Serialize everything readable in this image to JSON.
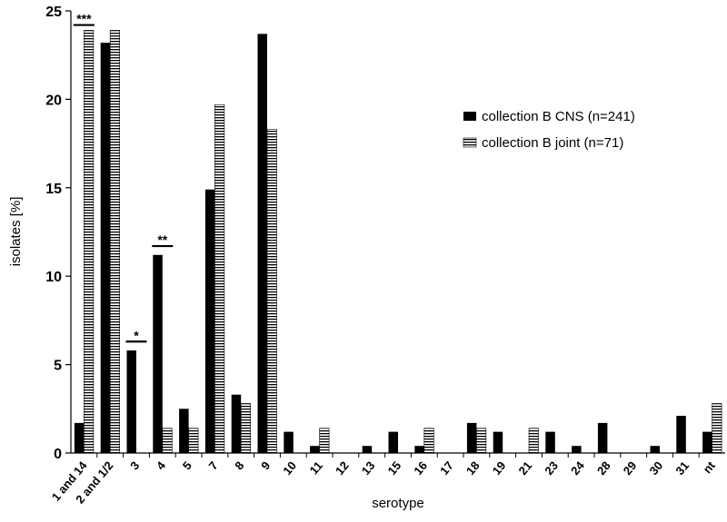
{
  "chart_data": {
    "type": "bar",
    "title": "",
    "xlabel": "serotype",
    "ylabel": "isolates [%]",
    "ylim": [
      0,
      25
    ],
    "yticks": [
      0,
      5,
      10,
      15,
      20,
      25
    ],
    "grid": false,
    "legend_position": "right",
    "categories": [
      "1 and 14",
      "2 and 1/2",
      "3",
      "4",
      "5",
      "7",
      "8",
      "9",
      "10",
      "11",
      "12",
      "13",
      "15",
      "16",
      "17",
      "18",
      "19",
      "21",
      "23",
      "24",
      "28",
      "29",
      "30",
      "31",
      "nt"
    ],
    "series": [
      {
        "name": "collection B CNS (n=241)",
        "fill": "#000000",
        "pattern": "solid",
        "values": [
          1.7,
          23.2,
          5.8,
          11.2,
          2.5,
          14.9,
          3.3,
          23.7,
          1.2,
          0.4,
          0,
          0.4,
          1.2,
          0.4,
          0,
          1.7,
          1.2,
          0,
          1.2,
          0.4,
          1.7,
          0,
          0.4,
          2.1,
          1.2
        ]
      },
      {
        "name": "collection B joint (n=71)",
        "fill": "#ffffff",
        "pattern": "horizontal-stripes",
        "values": [
          23.9,
          23.9,
          0,
          1.4,
          1.4,
          19.7,
          2.8,
          18.3,
          0,
          1.4,
          0,
          0,
          0,
          1.4,
          0,
          1.4,
          0,
          1.4,
          0,
          0,
          0,
          0,
          0,
          0,
          2.8
        ]
      }
    ],
    "annotations": [
      {
        "category": "1 and 14",
        "text": "***",
        "level": 24.2
      },
      {
        "category": "3",
        "text": "*",
        "level": 6.3
      },
      {
        "category": "4",
        "text": "**",
        "level": 11.7
      }
    ]
  }
}
